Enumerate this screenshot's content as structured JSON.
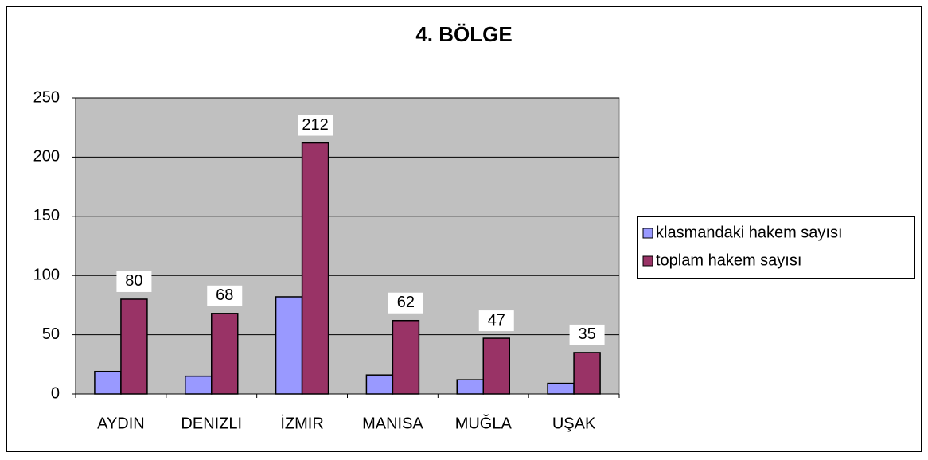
{
  "chart_data": {
    "type": "bar",
    "title": "4. BÖLGE",
    "categories": [
      "AYDIN",
      "DENIZLI",
      "İZMIR",
      "MANISA",
      "MUĞLA",
      "UŞAK"
    ],
    "series": [
      {
        "name": "klasmandaki hakem sayısı",
        "color": "#9999ff",
        "values": [
          19,
          15,
          82,
          16,
          12,
          9
        ],
        "show_labels": false
      },
      {
        "name": "toplam hakem sayısı",
        "color": "#993366",
        "values": [
          80,
          68,
          212,
          62,
          47,
          35
        ],
        "show_labels": true
      }
    ],
    "ylim": [
      0,
      250
    ],
    "yticks": [
      0,
      50,
      100,
      150,
      200,
      250
    ],
    "grid": true,
    "legend": "right"
  }
}
